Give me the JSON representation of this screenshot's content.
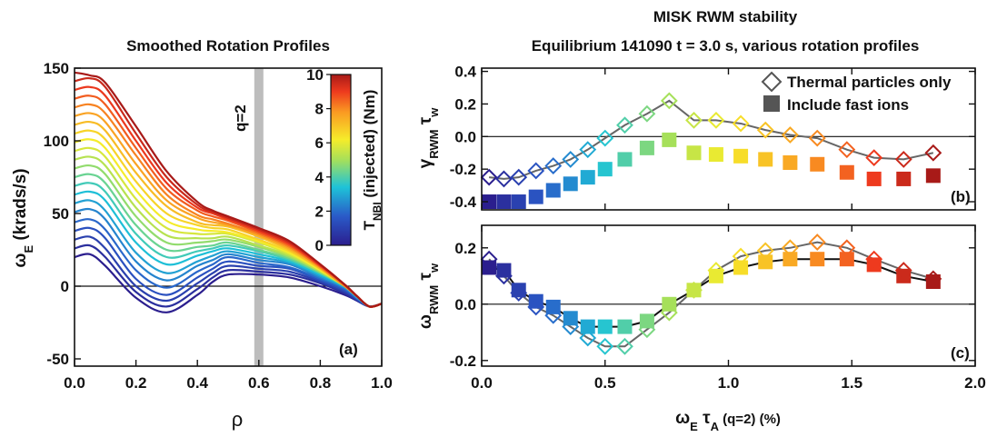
{
  "chart_data": [
    {
      "type": "line",
      "panel_label": "(a)",
      "title": "Smoothed Rotation Profiles",
      "xlabel": "ρ",
      "ylabel": "ωE (krads/s)",
      "ylabel_main": "ω",
      "ylabel_sub": "E",
      "ylabel_rest": " (krads/s)",
      "xlim": [
        0.0,
        1.0
      ],
      "ylim": [
        -55,
        150
      ],
      "xticks": [
        "0.0",
        "0.2",
        "0.4",
        "0.6",
        "0.8",
        "1.0"
      ],
      "yticks": [
        "-50",
        "0",
        "50",
        "100",
        "150"
      ],
      "grid": false,
      "annotation": "q=2",
      "q2_rho": 0.6,
      "x": [
        0.0,
        0.05,
        0.1,
        0.2,
        0.3,
        0.4,
        0.45,
        0.5,
        0.6,
        0.7,
        0.8,
        0.88,
        0.92,
        0.96,
        1.0
      ],
      "series": [
        {
          "values": [
            20,
            22,
            14,
            -8,
            -18,
            -6,
            3,
            8,
            8,
            6,
            0,
            -6,
            -10,
            -14,
            -12
          ]
        },
        {
          "values": [
            26,
            28,
            20,
            -4,
            -14,
            -2,
            6,
            11,
            10,
            8,
            2,
            -5,
            -10,
            -14,
            -12
          ]
        },
        {
          "values": [
            32,
            34,
            26,
            0,
            -10,
            2,
            9,
            14,
            12,
            10,
            3,
            -4,
            -9,
            -14,
            -12
          ]
        },
        {
          "values": [
            38,
            40,
            33,
            5,
            -6,
            6,
            12,
            17,
            14,
            12,
            4,
            -3,
            -9,
            -14,
            -12
          ]
        },
        {
          "values": [
            44,
            46,
            39,
            11,
            -1,
            10,
            15,
            20,
            16,
            13,
            5,
            -2,
            -8,
            -14,
            -12
          ]
        },
        {
          "values": [
            51,
            53,
            46,
            17,
            4,
            14,
            18,
            22,
            18,
            15,
            6,
            -1,
            -8,
            -14,
            -12
          ]
        },
        {
          "values": [
            57,
            59,
            52,
            23,
            9,
            17,
            21,
            24,
            20,
            16,
            7,
            -1,
            -8,
            -14,
            -12
          ]
        },
        {
          "values": [
            63,
            65,
            59,
            30,
            15,
            21,
            24,
            26,
            22,
            17,
            8,
            0,
            -7,
            -14,
            -12
          ]
        },
        {
          "values": [
            69,
            71,
            65,
            36,
            20,
            24,
            26,
            28,
            24,
            18,
            9,
            0,
            -7,
            -14,
            -12
          ]
        },
        {
          "values": [
            75,
            77,
            71,
            42,
            25,
            27,
            28,
            30,
            25,
            19,
            9,
            0,
            -7,
            -14,
            -12
          ]
        },
        {
          "values": [
            81,
            83,
            77,
            48,
            30,
            30,
            31,
            32,
            27,
            20,
            10,
            0,
            -7,
            -14,
            -12
          ]
        },
        {
          "values": [
            87,
            89,
            83,
            54,
            35,
            33,
            33,
            34,
            28,
            21,
            10,
            0,
            -7,
            -14,
            -12
          ]
        },
        {
          "values": [
            93,
            95,
            89,
            60,
            40,
            36,
            36,
            36,
            30,
            22,
            11,
            0,
            -7,
            -14,
            -12
          ]
        },
        {
          "values": [
            99,
            101,
            95,
            66,
            45,
            39,
            38,
            37,
            31,
            23,
            11,
            0,
            -7,
            -14,
            -12
          ]
        },
        {
          "values": [
            105,
            107,
            101,
            72,
            50,
            42,
            40,
            39,
            32,
            24,
            12,
            0,
            -7,
            -14,
            -12
          ]
        },
        {
          "values": [
            111,
            113,
            107,
            78,
            55,
            44,
            42,
            41,
            34,
            25,
            12,
            0,
            -7,
            -14,
            -12
          ]
        },
        {
          "values": [
            117,
            119,
            113,
            84,
            59,
            47,
            44,
            42,
            35,
            26,
            13,
            0,
            -7,
            -14,
            -12
          ]
        },
        {
          "values": [
            123,
            125,
            119,
            90,
            63,
            49,
            46,
            43,
            36,
            27,
            13,
            0,
            -7,
            -14,
            -12
          ]
        },
        {
          "values": [
            129,
            131,
            125,
            95,
            67,
            52,
            48,
            45,
            37,
            28,
            14,
            1,
            -7,
            -14,
            -12
          ]
        },
        {
          "values": [
            135,
            137,
            131,
            100,
            71,
            54,
            50,
            46,
            38,
            29,
            14,
            1,
            -7,
            -14,
            -12
          ]
        },
        {
          "values": [
            141,
            143,
            137,
            105,
            75,
            56,
            51,
            47,
            39,
            30,
            15,
            1,
            -7,
            -14,
            -12
          ]
        },
        {
          "values": [
            147,
            145,
            140,
            110,
            79,
            58,
            52,
            48,
            40,
            31,
            15,
            1,
            -7,
            -14,
            -12
          ]
        }
      ],
      "colorbar": {
        "label": "TNBI (injected) (Nm)",
        "label_main": "T",
        "label_sub": "NBI",
        "label_rest": " (injected) (Nm)",
        "range": [
          0,
          10
        ],
        "ticks": [
          "0",
          "2",
          "4",
          "6",
          "8",
          "10"
        ]
      }
    },
    {
      "type": "scatter",
      "panel_label": "(b)",
      "title": "MISK RWM stability",
      "subtitle": "Equilibrium 141090 t = 3.0 s, various rotation profiles",
      "ylabel": "γRWM τw",
      "ylabel_main": "γ",
      "ylabel_sub": "RWM",
      "ylabel_tau": " τ",
      "ylabel_tau_sub": "w",
      "xlim": [
        0.0,
        2.0
      ],
      "ylim": [
        -0.45,
        0.42
      ],
      "yticks": [
        "0.4",
        "0.2",
        "0.0",
        "-0.2",
        "-0.4"
      ],
      "legend_position": "top-right",
      "x": [
        0.03,
        0.09,
        0.15,
        0.22,
        0.29,
        0.36,
        0.43,
        0.5,
        0.58,
        0.67,
        0.76,
        0.86,
        0.95,
        1.05,
        1.15,
        1.25,
        1.36,
        1.48,
        1.59,
        1.71,
        1.83
      ],
      "series": [
        {
          "name": "Thermal particles only",
          "marker": "open-diamond",
          "values": [
            -0.25,
            -0.26,
            -0.25,
            -0.21,
            -0.18,
            -0.14,
            -0.08,
            -0.01,
            0.07,
            0.14,
            0.22,
            0.1,
            0.1,
            0.08,
            0.04,
            0.01,
            -0.01,
            -0.08,
            -0.13,
            -0.14,
            -0.1
          ]
        },
        {
          "name": "Include fast ions",
          "marker": "filled-square",
          "values": [
            -0.4,
            -0.4,
            -0.4,
            -0.37,
            -0.33,
            -0.29,
            -0.25,
            -0.2,
            -0.14,
            -0.07,
            -0.02,
            -0.1,
            -0.11,
            -0.12,
            -0.14,
            -0.16,
            -0.17,
            -0.22,
            -0.26,
            -0.26,
            -0.24
          ]
        }
      ]
    },
    {
      "type": "scatter",
      "panel_label": "(c)",
      "xlabel": "ωE τA (q=2) (%)",
      "xlabel_omega": "ω",
      "xlabel_omega_sub": "E",
      "xlabel_tau": " τ",
      "xlabel_tau_sub": "A",
      "xlabel_rest": " (q=2) (%)",
      "ylabel": "ωRWM τw",
      "ylabel_main": "ω",
      "ylabel_sub": "RWM",
      "ylabel_tau": " τ",
      "ylabel_tau_sub": "w",
      "xlim": [
        0.0,
        2.0
      ],
      "ylim": [
        -0.22,
        0.28
      ],
      "xticks": [
        "0.0",
        "0.5",
        "1.0",
        "1.5",
        "2.0"
      ],
      "yticks": [
        "0.2",
        "0.0",
        "-0.2"
      ],
      "x": [
        0.03,
        0.09,
        0.15,
        0.22,
        0.29,
        0.36,
        0.43,
        0.5,
        0.58,
        0.67,
        0.76,
        0.86,
        0.95,
        1.05,
        1.15,
        1.25,
        1.36,
        1.48,
        1.59,
        1.71,
        1.83
      ],
      "series": [
        {
          "name": "Thermal particles only",
          "marker": "open-diamond",
          "values": [
            0.16,
            0.1,
            0.04,
            -0.01,
            -0.04,
            -0.08,
            -0.12,
            -0.15,
            -0.15,
            -0.09,
            -0.03,
            0.05,
            0.12,
            0.17,
            0.19,
            0.2,
            0.22,
            0.2,
            0.16,
            0.12,
            0.09
          ]
        },
        {
          "name": "Include fast ions",
          "marker": "filled-square",
          "values": [
            0.13,
            0.12,
            0.05,
            0.01,
            -0.01,
            -0.05,
            -0.08,
            -0.08,
            -0.08,
            -0.06,
            0.0,
            0.05,
            0.1,
            0.13,
            0.15,
            0.16,
            0.16,
            0.16,
            0.14,
            0.1,
            0.08
          ]
        }
      ]
    }
  ]
}
